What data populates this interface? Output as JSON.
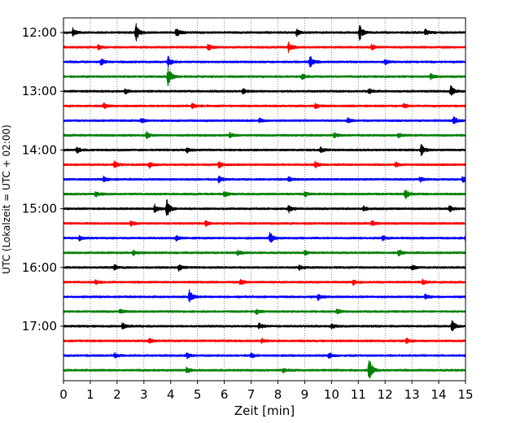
{
  "chart_data": {
    "type": "line",
    "title": "",
    "xlabel": "Zeit  [min]",
    "ylabel": "UTC (Lokalzeit = UTC + 02:00)",
    "xlim": [
      0,
      15
    ],
    "x_ticks": [
      0,
      1,
      2,
      3,
      4,
      5,
      6,
      7,
      8,
      9,
      10,
      11,
      12,
      13,
      14,
      15
    ],
    "y_tick_labels": [
      "12:00",
      "13:00",
      "14:00",
      "15:00",
      "16:00",
      "17:00"
    ],
    "y_tick_rows": [
      0,
      4,
      8,
      12,
      16,
      20
    ],
    "grid": "vertical dotted lines at each minute",
    "trace_interval_min": 15,
    "trace_colors": [
      "#000000",
      "#ff0000",
      "#0000ff",
      "#008000"
    ],
    "traces": [
      {
        "start": "12:00",
        "color": "#000000",
        "events": [
          {
            "t": 0.35,
            "a": 5
          },
          {
            "t": 2.7,
            "a": 12
          },
          {
            "t": 4.2,
            "a": 6
          },
          {
            "t": 8.7,
            "a": 4
          },
          {
            "t": 11.05,
            "a": 10
          },
          {
            "t": 13.5,
            "a": 4
          }
        ]
      },
      {
        "start": "12:15",
        "color": "#ff0000",
        "events": [
          {
            "t": 1.3,
            "a": 3
          },
          {
            "t": 5.4,
            "a": 4
          },
          {
            "t": 8.4,
            "a": 6
          },
          {
            "t": 11.5,
            "a": 3
          }
        ]
      },
      {
        "start": "12:30",
        "color": "#0000ff",
        "events": [
          {
            "t": 1.4,
            "a": 4
          },
          {
            "t": 3.9,
            "a": 7
          },
          {
            "t": 9.2,
            "a": 7
          },
          {
            "t": 12.0,
            "a": 3
          }
        ]
      },
      {
        "start": "12:45",
        "color": "#008000",
        "events": [
          {
            "t": 3.9,
            "a": 12
          },
          {
            "t": 8.9,
            "a": 4
          },
          {
            "t": 13.7,
            "a": 3
          }
        ]
      },
      {
        "start": "13:00",
        "color": "#000000",
        "events": [
          {
            "t": 2.3,
            "a": 3
          },
          {
            "t": 6.7,
            "a": 3
          },
          {
            "t": 11.4,
            "a": 3
          },
          {
            "t": 14.45,
            "a": 7
          }
        ]
      },
      {
        "start": "13:15",
        "color": "#ff0000",
        "events": [
          {
            "t": 1.5,
            "a": 3
          },
          {
            "t": 4.8,
            "a": 3
          },
          {
            "t": 9.4,
            "a": 3
          },
          {
            "t": 12.7,
            "a": 3
          }
        ]
      },
      {
        "start": "13:30",
        "color": "#0000ff",
        "events": [
          {
            "t": 2.9,
            "a": 3
          },
          {
            "t": 7.3,
            "a": 3
          },
          {
            "t": 10.6,
            "a": 3
          },
          {
            "t": 14.55,
            "a": 5
          }
        ]
      },
      {
        "start": "13:45",
        "color": "#008000",
        "events": [
          {
            "t": 3.1,
            "a": 4
          },
          {
            "t": 6.2,
            "a": 3
          },
          {
            "t": 10.1,
            "a": 3
          },
          {
            "t": 12.5,
            "a": 3
          }
        ]
      },
      {
        "start": "14:00",
        "color": "#000000",
        "events": [
          {
            "t": 0.5,
            "a": 4
          },
          {
            "t": 4.6,
            "a": 3
          },
          {
            "t": 9.6,
            "a": 4
          },
          {
            "t": 13.35,
            "a": 7
          }
        ]
      },
      {
        "start": "14:15",
        "color": "#ff0000",
        "events": [
          {
            "t": 1.9,
            "a": 4
          },
          {
            "t": 3.2,
            "a": 4
          },
          {
            "t": 5.8,
            "a": 4
          },
          {
            "t": 9.4,
            "a": 4
          },
          {
            "t": 12.4,
            "a": 3
          }
        ]
      },
      {
        "start": "14:30",
        "color": "#0000ff",
        "events": [
          {
            "t": 1.5,
            "a": 3
          },
          {
            "t": 5.8,
            "a": 4
          },
          {
            "t": 8.4,
            "a": 3
          },
          {
            "t": 13.3,
            "a": 3
          },
          {
            "t": 14.9,
            "a": 4
          }
        ]
      },
      {
        "start": "14:45",
        "color": "#008000",
        "events": [
          {
            "t": 1.2,
            "a": 3
          },
          {
            "t": 6.0,
            "a": 5
          },
          {
            "t": 9.0,
            "a": 3
          },
          {
            "t": 12.75,
            "a": 7
          }
        ]
      },
      {
        "start": "15:00",
        "color": "#000000",
        "events": [
          {
            "t": 3.4,
            "a": 5
          },
          {
            "t": 3.85,
            "a": 12
          },
          {
            "t": 8.4,
            "a": 5
          },
          {
            "t": 11.2,
            "a": 3
          },
          {
            "t": 14.4,
            "a": 4
          }
        ]
      },
      {
        "start": "15:15",
        "color": "#ff0000",
        "events": [
          {
            "t": 2.5,
            "a": 3
          },
          {
            "t": 5.3,
            "a": 3
          },
          {
            "t": 11.5,
            "a": 3
          }
        ]
      },
      {
        "start": "15:30",
        "color": "#0000ff",
        "events": [
          {
            "t": 0.6,
            "a": 3
          },
          {
            "t": 4.2,
            "a": 3
          },
          {
            "t": 7.7,
            "a": 8
          },
          {
            "t": 11.9,
            "a": 3
          },
          {
            "t": 15.0,
            "a": 4
          }
        ]
      },
      {
        "start": "15:45",
        "color": "#008000",
        "events": [
          {
            "t": 2.6,
            "a": 3
          },
          {
            "t": 6.5,
            "a": 3
          },
          {
            "t": 9.0,
            "a": 3
          },
          {
            "t": 12.5,
            "a": 4
          }
        ]
      },
      {
        "start": "16:00",
        "color": "#000000",
        "events": [
          {
            "t": 1.9,
            "a": 3
          },
          {
            "t": 4.3,
            "a": 4
          },
          {
            "t": 8.8,
            "a": 3
          },
          {
            "t": 13.0,
            "a": 3
          }
        ]
      },
      {
        "start": "16:15",
        "color": "#ff0000",
        "events": [
          {
            "t": 1.2,
            "a": 3
          },
          {
            "t": 6.6,
            "a": 3
          },
          {
            "t": 10.8,
            "a": 3
          },
          {
            "t": 13.4,
            "a": 3
          }
        ]
      },
      {
        "start": "16:30",
        "color": "#0000ff",
        "events": [
          {
            "t": 4.7,
            "a": 8
          },
          {
            "t": 9.5,
            "a": 4
          },
          {
            "t": 13.5,
            "a": 3
          }
        ]
      },
      {
        "start": "16:45",
        "color": "#008000",
        "events": [
          {
            "t": 2.1,
            "a": 3
          },
          {
            "t": 7.2,
            "a": 3
          },
          {
            "t": 10.2,
            "a": 3
          }
        ]
      },
      {
        "start": "17:00",
        "color": "#000000",
        "events": [
          {
            "t": 2.2,
            "a": 4
          },
          {
            "t": 7.3,
            "a": 4
          },
          {
            "t": 10.0,
            "a": 3
          },
          {
            "t": 14.5,
            "a": 8
          }
        ]
      },
      {
        "start": "17:15",
        "color": "#ff0000",
        "events": [
          {
            "t": 3.2,
            "a": 3
          },
          {
            "t": 7.4,
            "a": 3
          },
          {
            "t": 12.8,
            "a": 3
          }
        ]
      },
      {
        "start": "17:30",
        "color": "#0000ff",
        "events": [
          {
            "t": 1.9,
            "a": 3
          },
          {
            "t": 4.6,
            "a": 3
          },
          {
            "t": 7.0,
            "a": 3
          },
          {
            "t": 9.9,
            "a": 4
          }
        ]
      },
      {
        "start": "17:45",
        "color": "#008000",
        "events": [
          {
            "t": 4.6,
            "a": 3
          },
          {
            "t": 8.2,
            "a": 3
          },
          {
            "t": 11.4,
            "a": 16
          }
        ]
      }
    ]
  }
}
